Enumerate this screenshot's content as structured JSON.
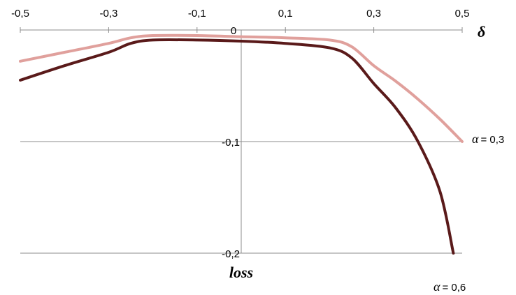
{
  "chart_data": {
    "type": "line",
    "xlabel": "δ",
    "ylabel": "loss",
    "xlim": [
      -0.5,
      0.5
    ],
    "ylim": [
      -0.2,
      0
    ],
    "x_ticks": [
      -0.5,
      -0.3,
      -0.1,
      0.1,
      0.3,
      0.5
    ],
    "x_tick_labels": [
      "-0,5",
      "-0,3",
      "-0,1",
      "0,1",
      "0,3",
      "0,5"
    ],
    "y_ticks": [
      0,
      -0.1,
      -0.2
    ],
    "y_tick_labels": [
      "0",
      "-0,1",
      "-0,2"
    ],
    "grid": true,
    "colors": {
      "alpha_0_3": "#e0a09c",
      "alpha_0_6": "#5a1a1a",
      "grid": "#8c8c8c"
    },
    "series": [
      {
        "name": "α = 0,3",
        "label_symbol": "α",
        "label_text": "= 0,3",
        "x": [
          -0.5,
          -0.4,
          -0.3,
          -0.25,
          -0.2,
          -0.1,
          0,
          0.1,
          0.2,
          0.25,
          0.3,
          0.35,
          0.4,
          0.45,
          0.5
        ],
        "y": [
          -0.028,
          -0.02,
          -0.012,
          -0.007,
          -0.005,
          -0.005,
          -0.006,
          -0.007,
          -0.009,
          -0.015,
          -0.032,
          -0.046,
          -0.062,
          -0.08,
          -0.1
        ]
      },
      {
        "name": "α = 0,6",
        "label_symbol": "α",
        "label_text": "= 0,6",
        "x": [
          -0.5,
          -0.4,
          -0.3,
          -0.25,
          -0.2,
          -0.1,
          0,
          0.1,
          0.2,
          0.25,
          0.3,
          0.35,
          0.4,
          0.45,
          0.48
        ],
        "y": [
          -0.045,
          -0.032,
          -0.02,
          -0.012,
          -0.009,
          -0.009,
          -0.01,
          -0.012,
          -0.016,
          -0.025,
          -0.048,
          -0.07,
          -0.1,
          -0.145,
          -0.2
        ]
      }
    ]
  }
}
